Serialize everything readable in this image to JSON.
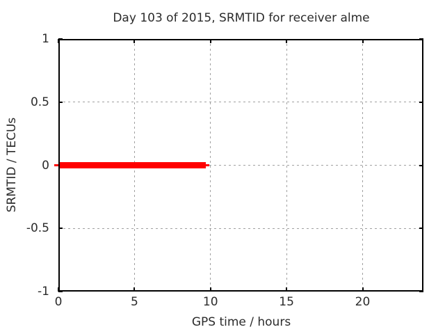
{
  "chart_data": {
    "type": "line",
    "title": "Day 103 of 2015, SRMTID for receiver alme",
    "xlabel": "GPS time / hours",
    "ylabel": "SRMTID / TECUs",
    "xlim": [
      0,
      24
    ],
    "ylim": [
      -1,
      1
    ],
    "xticks": [
      {
        "v": 0,
        "label": "0"
      },
      {
        "v": 5,
        "label": "5"
      },
      {
        "v": 10,
        "label": "10"
      },
      {
        "v": 15,
        "label": "15"
      },
      {
        "v": 20,
        "label": "20"
      }
    ],
    "yticks": [
      {
        "v": -1,
        "label": "-1"
      },
      {
        "v": -0.5,
        "label": "-0.5"
      },
      {
        "v": 0,
        "label": "0"
      },
      {
        "v": 0.5,
        "label": "0.5"
      },
      {
        "v": 1,
        "label": "1"
      }
    ],
    "grid": true,
    "grid_style": "dashed",
    "legend_position": "none",
    "colors": {
      "series": "#ff0000",
      "grid": "#a0a0a0",
      "border": "#000000",
      "text": "#2b2b2b",
      "background": "#ffffff"
    },
    "series": [
      {
        "name": "SRMTID",
        "color": "#ff0000",
        "x": [
          0,
          9.7
        ],
        "y": [
          0,
          0
        ],
        "y_value": 0,
        "segments": [
          {
            "x0": -0.27,
            "x1": 0,
            "lw": 3
          },
          {
            "x0": 0,
            "x1": 9.7,
            "lw": 9
          },
          {
            "x0": 9.7,
            "x1": 9.9,
            "lw": 3
          }
        ]
      }
    ]
  }
}
